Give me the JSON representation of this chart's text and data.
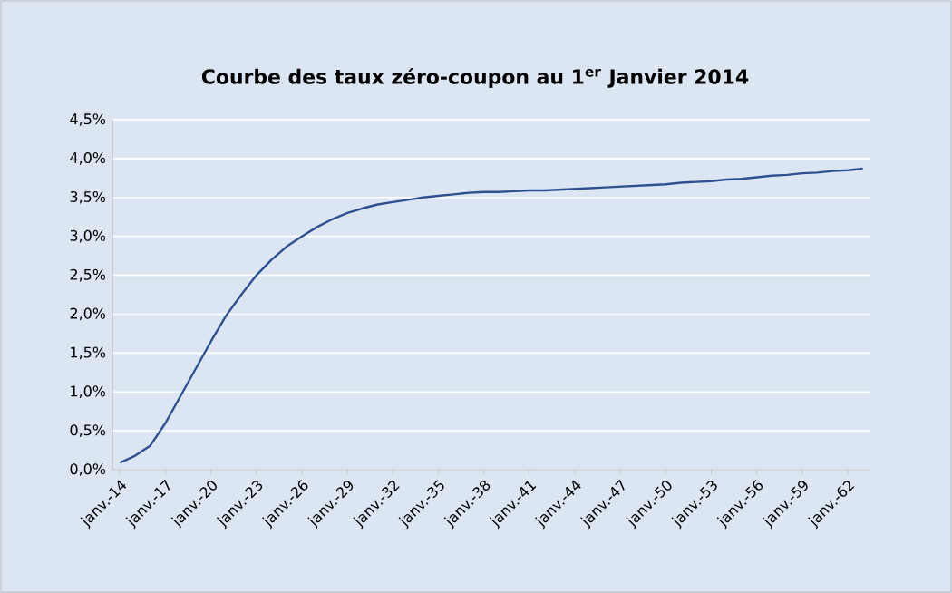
{
  "chart_data": {
    "type": "line",
    "title": "Courbe des taux zéro-coupon au 1$^{er}$ Janvier 2014",
    "categories": [
      "janv.-14",
      null,
      null,
      "janv.-17",
      null,
      null,
      "janv.-20",
      null,
      null,
      "janv.-23",
      null,
      null,
      "janv.-26",
      null,
      null,
      "janv.-29",
      null,
      null,
      "janv.-32",
      null,
      null,
      "janv.-35",
      null,
      null,
      "janv.-38",
      null,
      null,
      "janv.-41",
      null,
      null,
      "janv.-44",
      null,
      null,
      "janv.-47",
      null,
      null,
      "janv.-50",
      null,
      null,
      "janv.-53",
      null,
      null,
      "janv.-56",
      null,
      null,
      "janv.-59",
      null,
      null,
      "janv.-62",
      null
    ],
    "values": [
      0.09,
      0.18,
      0.31,
      0.6,
      0.95,
      1.3,
      1.65,
      1.98,
      2.25,
      2.5,
      2.7,
      2.87,
      3.0,
      3.12,
      3.22,
      3.3,
      3.36,
      3.41,
      3.44,
      3.47,
      3.5,
      3.52,
      3.54,
      3.56,
      3.57,
      3.57,
      3.58,
      3.59,
      3.59,
      3.6,
      3.61,
      3.62,
      3.63,
      3.64,
      3.65,
      3.66,
      3.67,
      3.69,
      3.7,
      3.71,
      3.73,
      3.74,
      3.76,
      3.78,
      3.79,
      3.81,
      3.82,
      3.84,
      3.85,
      3.87
    ],
    "color": "#2f5090",
    "ylim": [
      0,
      4.5
    ],
    "yticks": [
      {
        "value": 0,
        "label": "0,0%"
      },
      {
        "value": 0.5,
        "label": "0,5%"
      },
      {
        "value": 1,
        "label": "1,0%"
      },
      {
        "value": 1.5,
        "label": "1,5%"
      },
      {
        "value": 2,
        "label": "2,0%"
      },
      {
        "value": 2.5,
        "label": "2,5%"
      },
      {
        "value": 3,
        "label": "3,0%"
      },
      {
        "value": 3.5,
        "label": "3,5%"
      },
      {
        "value": 4,
        "label": "4,0%"
      },
      {
        "value": 4.5,
        "label": "4,5%"
      }
    ],
    "grid": "y",
    "marker": "none",
    "line_style": "solid"
  }
}
